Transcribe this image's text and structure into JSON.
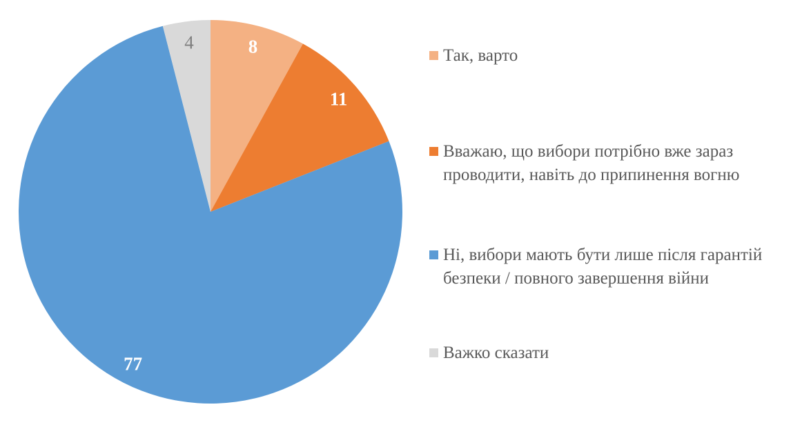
{
  "chart_data": {
    "type": "pie",
    "start_angle": "top, clockwise",
    "legend_position": "right",
    "slices": [
      {
        "label": "Так, варто",
        "value": 8,
        "color": "#F4B183",
        "label_color": "#FFFFFF"
      },
      {
        "label": "Вважаю, що вибори потрібно вже зараз проводити, навіть до припинення вогню",
        "value": 11,
        "color": "#ED7D31",
        "label_color": "#FFFFFF"
      },
      {
        "label": "Ні, вибори мають бути лише після гарантій безпеки / повного завершення війни",
        "value": 77,
        "color": "#5B9BD5",
        "label_color": "#FFFFFF"
      },
      {
        "label": "Важко сказати",
        "value": 4,
        "color": "#D9D9D9",
        "label_color": "#7F7F7F"
      }
    ]
  }
}
